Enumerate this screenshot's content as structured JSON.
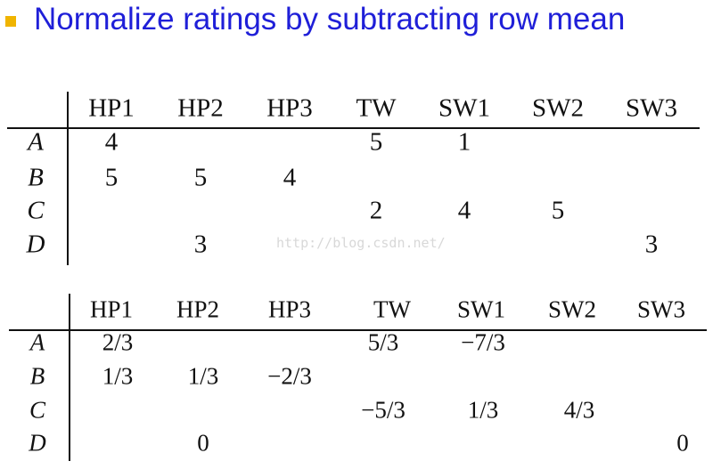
{
  "title": "Normalize ratings by subtracting row mean",
  "watermark": "http://blog.csdn.net/",
  "tables": [
    {
      "columns": [
        "HP1",
        "HP2",
        "HP3",
        "TW",
        "SW1",
        "SW2",
        "SW3"
      ],
      "rows": [
        {
          "label": "A",
          "cells": [
            4,
            null,
            null,
            5,
            1,
            null,
            null
          ]
        },
        {
          "label": "B",
          "cells": [
            5,
            5,
            4,
            null,
            null,
            null,
            null
          ]
        },
        {
          "label": "C",
          "cells": [
            null,
            null,
            null,
            2,
            4,
            5,
            null
          ]
        },
        {
          "label": "D",
          "cells": [
            null,
            3,
            null,
            null,
            null,
            null,
            3
          ]
        }
      ]
    },
    {
      "columns": [
        "HP1",
        "HP2",
        "HP3",
        "TW",
        "SW1",
        "SW2",
        "SW3"
      ],
      "rows": [
        {
          "label": "A",
          "cells": [
            "2/3",
            null,
            null,
            "5/3",
            "−7/3",
            null,
            null
          ]
        },
        {
          "label": "B",
          "cells": [
            "1/3",
            "1/3",
            "−2/3",
            null,
            null,
            null,
            null
          ]
        },
        {
          "label": "C",
          "cells": [
            null,
            null,
            null,
            "−5/3",
            "1/3",
            "4/3",
            null
          ]
        },
        {
          "label": "D",
          "cells": [
            null,
            "0",
            null,
            null,
            null,
            null,
            "0"
          ]
        }
      ]
    }
  ]
}
